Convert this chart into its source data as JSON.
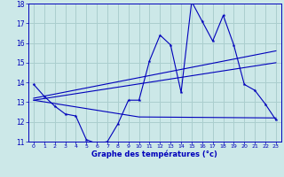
{
  "background_color": "#cce8e8",
  "grid_color": "#aacece",
  "line_color": "#0000bb",
  "xlabel": "Graphe des températures (°c)",
  "xlim": [
    -0.5,
    23.5
  ],
  "ylim": [
    11,
    18
  ],
  "yticks": [
    11,
    12,
    13,
    14,
    15,
    16,
    17,
    18
  ],
  "xticks": [
    0,
    1,
    2,
    3,
    4,
    5,
    6,
    7,
    8,
    9,
    10,
    11,
    12,
    13,
    14,
    15,
    16,
    17,
    18,
    19,
    20,
    21,
    22,
    23
  ],
  "series1_x": [
    0,
    1,
    2,
    3,
    4,
    5,
    6,
    7,
    8,
    9,
    10,
    11,
    12,
    13,
    14,
    15,
    16,
    17,
    18,
    19,
    20,
    21,
    22,
    23
  ],
  "series1_y": [
    13.9,
    13.3,
    12.8,
    12.4,
    12.3,
    11.1,
    10.9,
    11.0,
    11.9,
    13.1,
    13.1,
    15.1,
    16.4,
    15.9,
    13.5,
    18.1,
    17.1,
    16.1,
    17.4,
    15.9,
    13.9,
    13.6,
    12.9,
    12.1
  ],
  "series2_x": [
    0,
    23
  ],
  "series2_y": [
    13.2,
    15.6
  ],
  "series3_x": [
    0,
    10,
    23
  ],
  "series3_y": [
    13.1,
    12.25,
    12.2
  ],
  "series4_x": [
    0,
    23
  ],
  "series4_y": [
    13.1,
    15.0
  ]
}
